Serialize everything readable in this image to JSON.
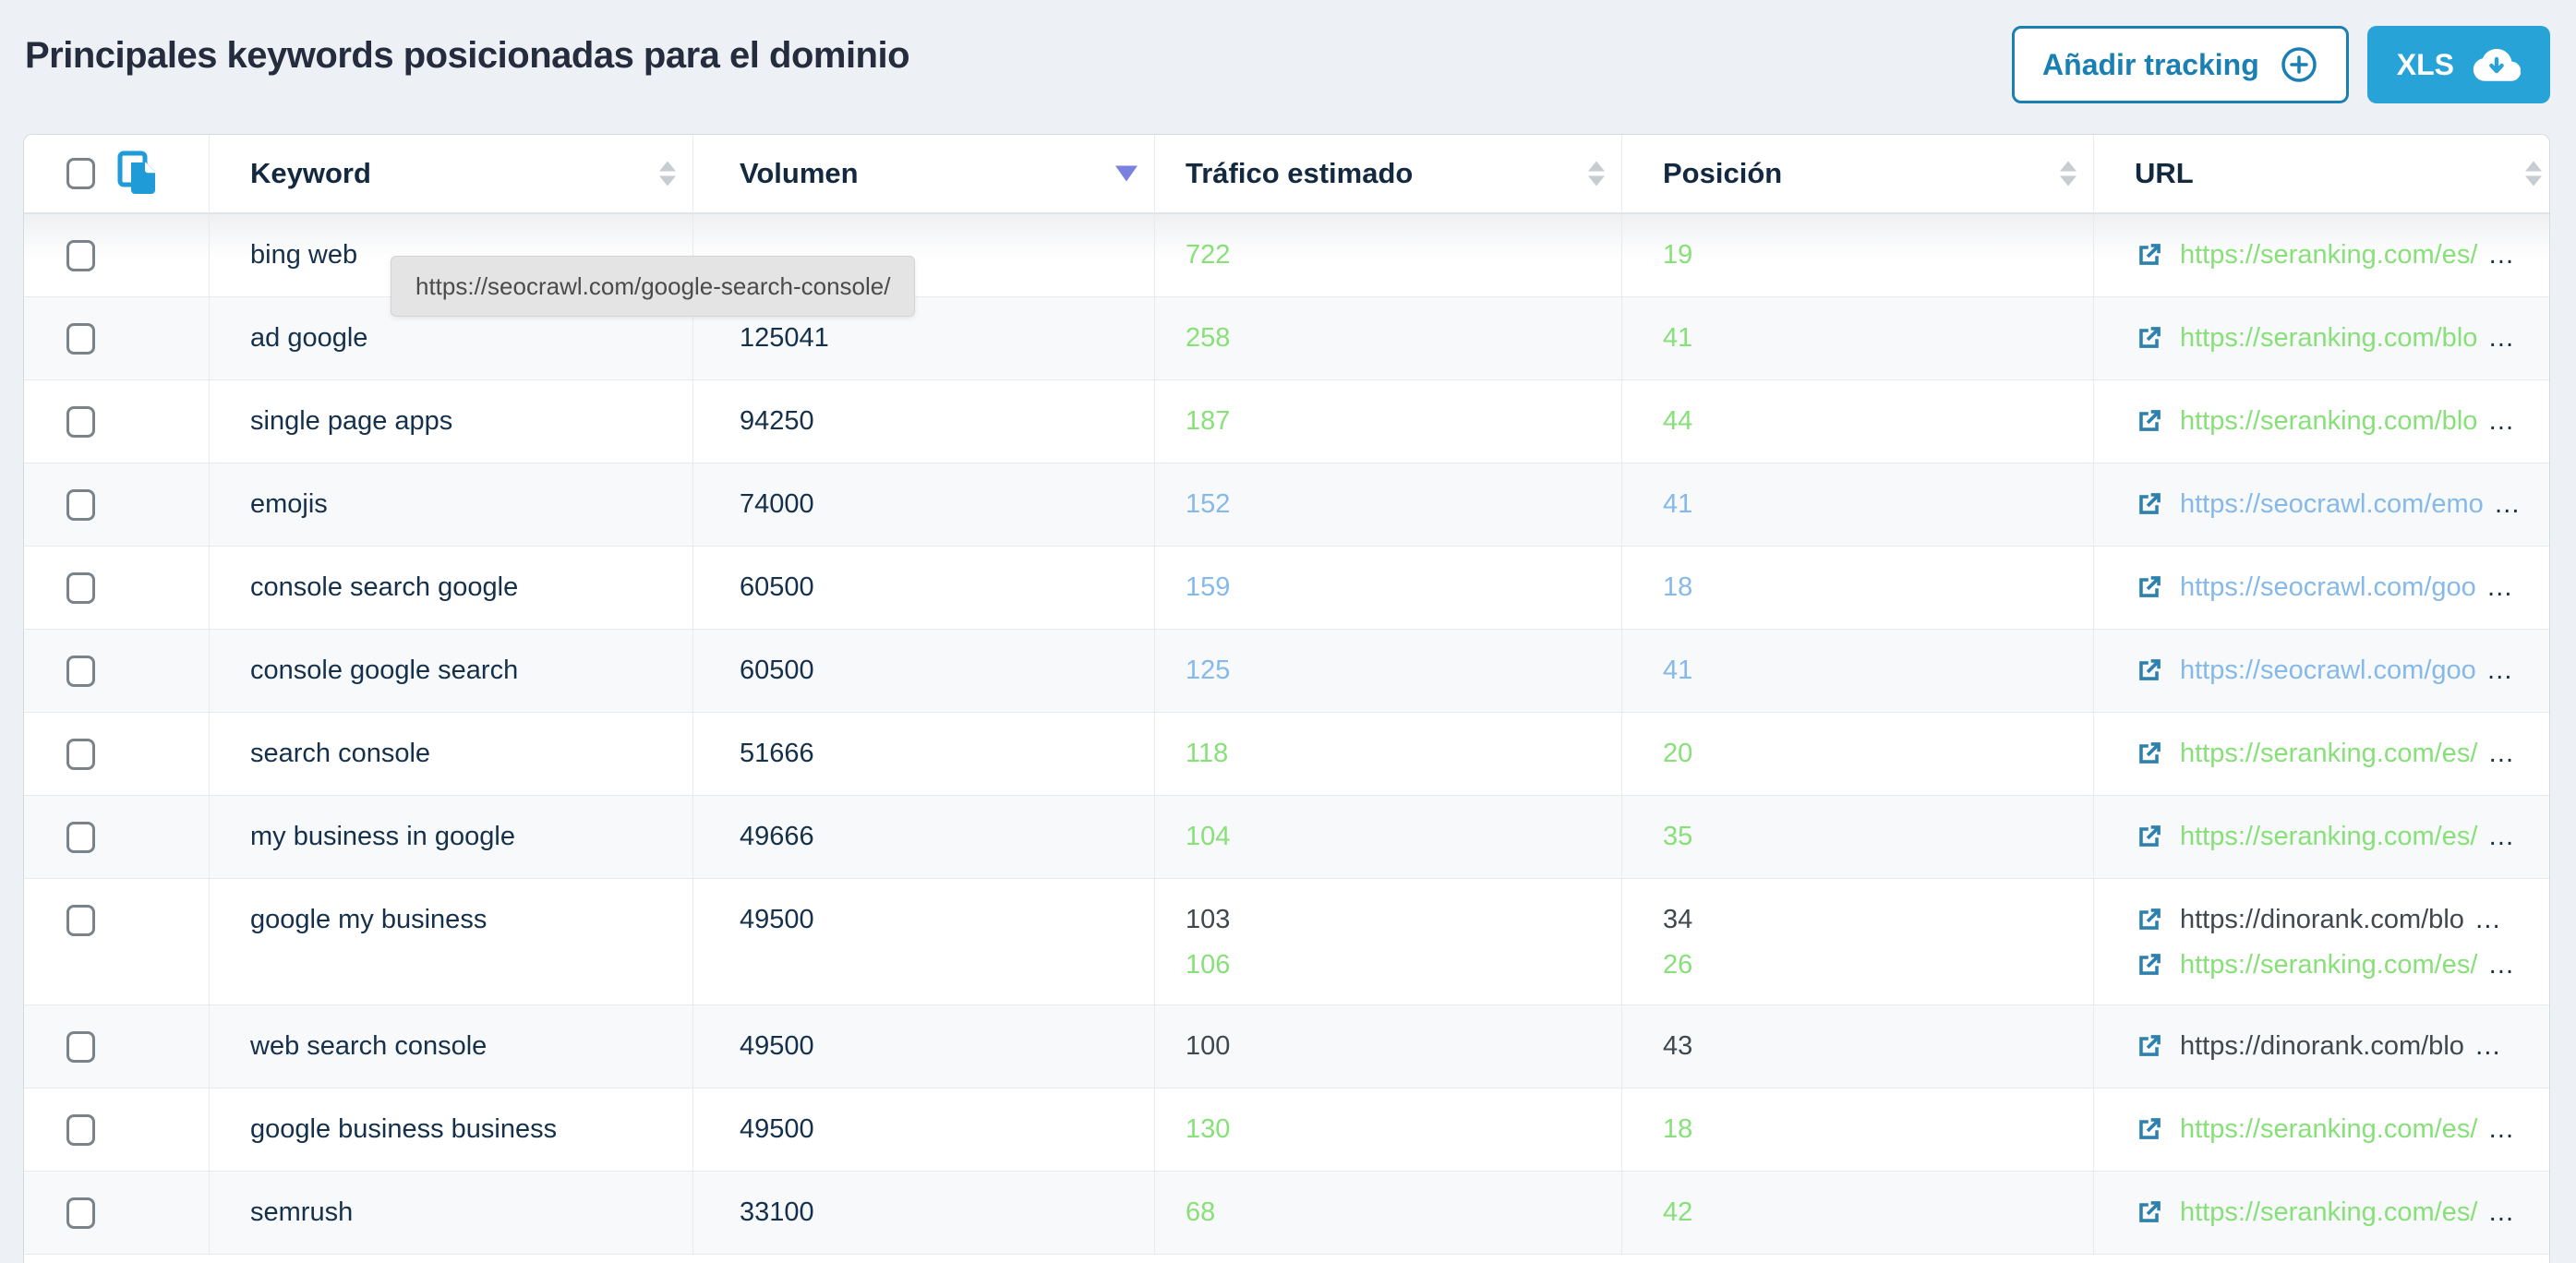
{
  "title": "Principales keywords posicionadas para el dominio",
  "actions": {
    "add_tracking_label": "Añadir tracking",
    "xls_label": "XLS"
  },
  "tooltip": {
    "text": "https://seocrawl.com/google-search-console/"
  },
  "colors": {
    "green": "#87e078",
    "blue": "#85b9e9",
    "dark": "#40474e",
    "navy": "#15304a",
    "accent_blue": "#1a7fb2",
    "xls_button_blue": "#28a3d8",
    "sort_active": "#7a81de"
  },
  "icons": {
    "copy": "copy-icon",
    "external_link": "external-link-icon",
    "plus_circle": "plus-circle-icon",
    "cloud_download": "cloud-download-icon"
  },
  "table": {
    "headers": [
      {
        "label": "Keyword",
        "sort": "both"
      },
      {
        "label": "Volumen",
        "sort": "desc"
      },
      {
        "label": "Tráfico estimado",
        "sort": "both"
      },
      {
        "label": "Posición",
        "sort": "both"
      },
      {
        "label": "URL",
        "sort": "both"
      }
    ],
    "rows": [
      {
        "keyword": "bing web",
        "volumen": "",
        "traffic": [
          {
            "v": "722",
            "c": "green"
          }
        ],
        "position": [
          {
            "v": "19",
            "c": "green"
          }
        ],
        "urls": [
          {
            "text": "https://seranking.com/es/",
            "c": "green"
          }
        ]
      },
      {
        "keyword": "ad google",
        "volumen": "125041",
        "traffic": [
          {
            "v": "258",
            "c": "green"
          }
        ],
        "position": [
          {
            "v": "41",
            "c": "green"
          }
        ],
        "urls": [
          {
            "text": "https://seranking.com/blo",
            "c": "green"
          }
        ]
      },
      {
        "keyword": "single page apps",
        "volumen": "94250",
        "traffic": [
          {
            "v": "187",
            "c": "green"
          }
        ],
        "position": [
          {
            "v": "44",
            "c": "green"
          }
        ],
        "urls": [
          {
            "text": "https://seranking.com/blo",
            "c": "green"
          }
        ]
      },
      {
        "keyword": "emojis",
        "volumen": "74000",
        "traffic": [
          {
            "v": "152",
            "c": "blue"
          }
        ],
        "position": [
          {
            "v": "41",
            "c": "blue"
          }
        ],
        "urls": [
          {
            "text": "https://seocrawl.com/emo",
            "c": "blue"
          }
        ]
      },
      {
        "keyword": "console search google",
        "volumen": "60500",
        "traffic": [
          {
            "v": "159",
            "c": "blue"
          }
        ],
        "position": [
          {
            "v": "18",
            "c": "blue"
          }
        ],
        "urls": [
          {
            "text": "https://seocrawl.com/goo",
            "c": "blue"
          }
        ]
      },
      {
        "keyword": "console google search",
        "volumen": "60500",
        "traffic": [
          {
            "v": "125",
            "c": "blue"
          }
        ],
        "position": [
          {
            "v": "41",
            "c": "blue"
          }
        ],
        "urls": [
          {
            "text": "https://seocrawl.com/goo",
            "c": "blue"
          }
        ]
      },
      {
        "keyword": "search console",
        "volumen": "51666",
        "traffic": [
          {
            "v": "118",
            "c": "green"
          }
        ],
        "position": [
          {
            "v": "20",
            "c": "green"
          }
        ],
        "urls": [
          {
            "text": "https://seranking.com/es/",
            "c": "green"
          }
        ]
      },
      {
        "keyword": "my business in google",
        "volumen": "49666",
        "traffic": [
          {
            "v": "104",
            "c": "green"
          }
        ],
        "position": [
          {
            "v": "35",
            "c": "green"
          }
        ],
        "urls": [
          {
            "text": "https://seranking.com/es/",
            "c": "green"
          }
        ]
      },
      {
        "keyword": "google my business",
        "volumen": "49500",
        "tall": true,
        "traffic": [
          {
            "v": "103",
            "c": "dark"
          },
          {
            "v": "106",
            "c": "green"
          }
        ],
        "position": [
          {
            "v": "34",
            "c": "dark"
          },
          {
            "v": "26",
            "c": "green"
          }
        ],
        "urls": [
          {
            "text": "https://dinorank.com/blo",
            "c": "dark"
          },
          {
            "text": "https://seranking.com/es/",
            "c": "green"
          }
        ]
      },
      {
        "keyword": "web search console",
        "volumen": "49500",
        "traffic": [
          {
            "v": "100",
            "c": "dark"
          }
        ],
        "position": [
          {
            "v": "43",
            "c": "dark"
          }
        ],
        "urls": [
          {
            "text": "https://dinorank.com/blo",
            "c": "dark"
          }
        ]
      },
      {
        "keyword": "google business business",
        "volumen": "49500",
        "traffic": [
          {
            "v": "130",
            "c": "green"
          }
        ],
        "position": [
          {
            "v": "18",
            "c": "green"
          }
        ],
        "urls": [
          {
            "text": "https://seranking.com/es/",
            "c": "green"
          }
        ]
      },
      {
        "keyword": "semrush",
        "volumen": "33100",
        "traffic": [
          {
            "v": "68",
            "c": "green"
          }
        ],
        "position": [
          {
            "v": "42",
            "c": "green"
          }
        ],
        "urls": [
          {
            "text": "https://seranking.com/es/",
            "c": "green"
          }
        ]
      }
    ]
  }
}
